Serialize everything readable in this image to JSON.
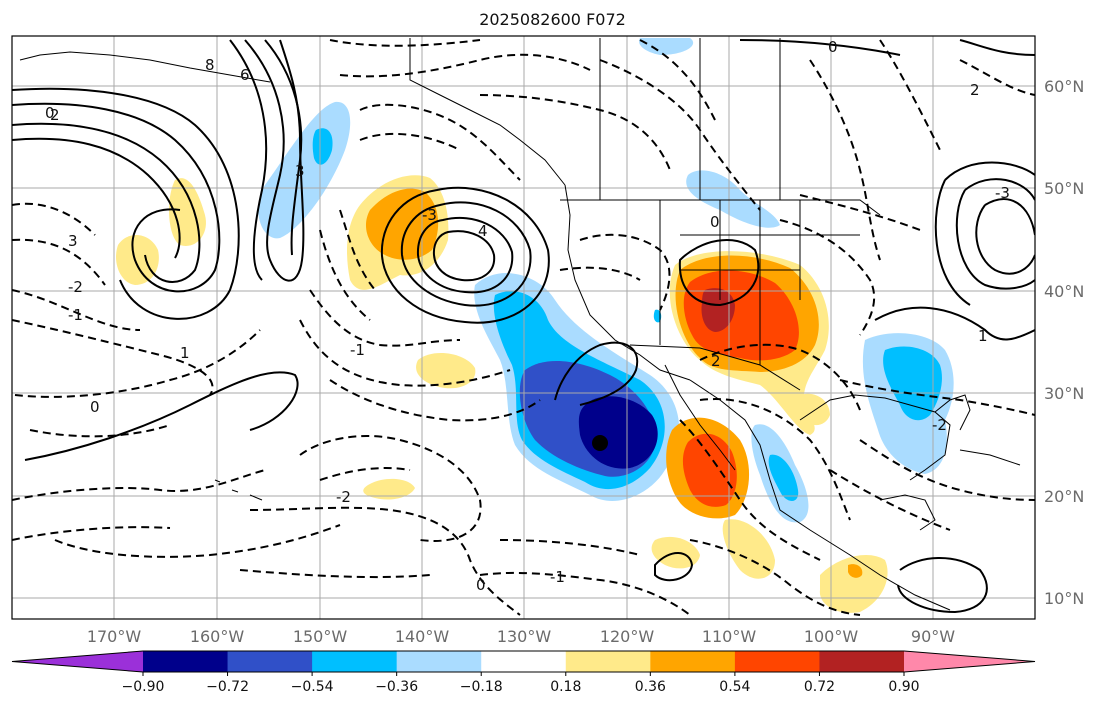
{
  "title": "2025082600 F072",
  "lon_ticks": [
    "170°W",
    "160°W",
    "150°W",
    "140°W",
    "130°W",
    "120°W",
    "110°W",
    "100°W",
    "90°W"
  ],
  "lat_ticks": [
    "60°N",
    "50°N",
    "40°N",
    "30°N",
    "20°N",
    "10°N"
  ],
  "colorbar": {
    "ticks": [
      "−0.90",
      "−0.72",
      "−0.54",
      "−0.36",
      "−0.18",
      "0.18",
      "0.36",
      "0.54",
      "0.72",
      "0.90"
    ],
    "colors": [
      "#9b30d9",
      "#00008b",
      "#3050c8",
      "#00bfff",
      "#aadcff",
      "#ffffff",
      "#ffea8a",
      "#ffa500",
      "#ff4500",
      "#b22222",
      "#ff88aa"
    ]
  },
  "contour_labels": [
    "0",
    "2",
    "3",
    "-1",
    "-2",
    "-3",
    "4",
    "6",
    "8",
    "1",
    "0",
    "-1",
    "-2",
    "2",
    "3",
    "-1",
    "0",
    "-2",
    "1",
    "-3",
    "0",
    "0",
    "2"
  ],
  "colors": {
    "land_line": "#000000",
    "grid": "#aaaaaa"
  }
}
